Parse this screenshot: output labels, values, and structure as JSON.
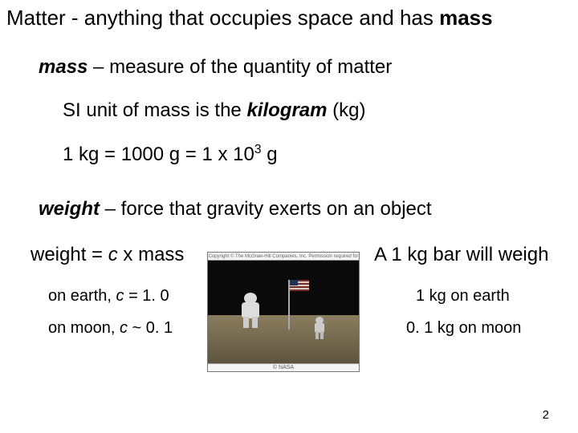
{
  "title_prefix": "Matter - anything that occupies space and has ",
  "title_bold": "mass",
  "mass_bold": "mass",
  "mass_rest": " – measure of the quantity of matter",
  "si_prefix": "SI unit of mass is the ",
  "si_bold": "kilogram",
  "si_suffix": " (kg)",
  "kg_line_pre": "1 kg = 1000 g = 1 x 10",
  "kg_exp": "3",
  "kg_line_post": " g",
  "weight_bold": "weight",
  "weight_rest": " – force that gravity exerts on an object",
  "formula_pre": "weight = ",
  "formula_c": "c",
  "formula_post": " x mass",
  "earth_c_pre": "on earth, ",
  "earth_c_c": "c",
  "earth_c_post": " = 1. 0",
  "moon_c_pre": "on moon, ",
  "moon_c_c": "c",
  "moon_c_post": " ~ 0. 1",
  "will_weigh": "A 1 kg bar will weigh",
  "earth_result": "1 kg on earth",
  "moon_result": "0. 1 kg on moon",
  "img_copyright": "Copyright © The McGraw-Hill Companies, Inc. Permission required for reproduction or display.",
  "img_credit": "© NASA",
  "page_number": "2",
  "colors": {
    "bg": "#ffffff",
    "text": "#000000",
    "ground_top": "#8a7d5f",
    "ground_bot": "#5e543e",
    "sky": "#0a0a0a"
  }
}
